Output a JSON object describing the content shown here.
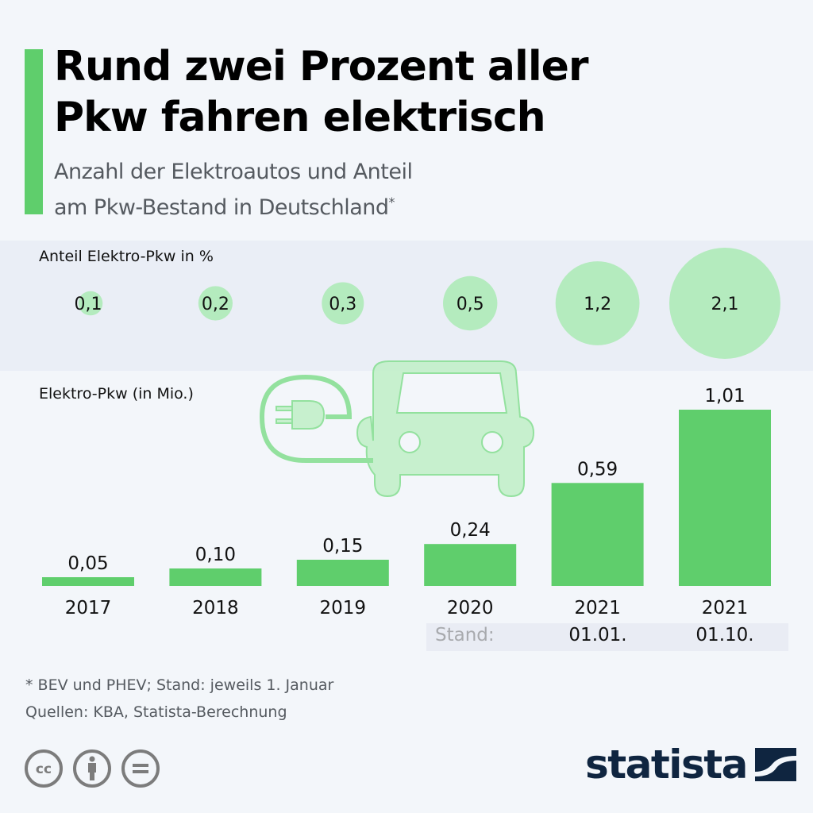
{
  "header": {
    "title_line1": "Rund zwei Prozent aller",
    "title_line2": "Pkw fahren elektrisch",
    "subtitle_line1": "Anzahl der Elektroautos und Anteil",
    "subtitle_line2": "am Pkw-Bestand in Deutschland",
    "subtitle_mark": "*"
  },
  "colors": {
    "accent": "#5fce6c",
    "bubble": "#b4ebbe",
    "bar": "#5fce6c",
    "text": "#111111",
    "logo": "#0f2540"
  },
  "chart_data": [
    {
      "type": "bubble",
      "title": "Anteil Elektro-Pkw in %",
      "categories": [
        "2017",
        "2018",
        "2019",
        "2020",
        "2021 (01.01.)",
        "2021 (01.10.)"
      ],
      "values": [
        0.1,
        0.2,
        0.3,
        0.5,
        1.2,
        2.1
      ],
      "labels": [
        "0,1",
        "0,2",
        "0,3",
        "0,5",
        "1,2",
        "2,1"
      ],
      "unit": "%"
    },
    {
      "type": "bar",
      "title": "Elektro-Pkw (in Mio.)",
      "categories": [
        "2017",
        "2018",
        "2019",
        "2020",
        "2021",
        "2021"
      ],
      "values": [
        0.05,
        0.1,
        0.15,
        0.24,
        0.59,
        1.01
      ],
      "labels": [
        "0,05",
        "0,10",
        "0,15",
        "0,24",
        "0,59",
        "1,01"
      ],
      "xlabel": "",
      "ylabel": "Mio.",
      "ylim": [
        0,
        1.01
      ],
      "grid": false
    }
  ],
  "stand": {
    "label": "Stand:",
    "dates": [
      "01.01.",
      "01.10."
    ]
  },
  "footnote": {
    "line1": "* BEV und PHEV; Stand: jeweils 1. Januar",
    "line2": "Quellen: KBA, Statista-Berechnung"
  },
  "license_icons": [
    "cc-icon",
    "by-attribution-icon",
    "no-derivatives-icon"
  ],
  "logo": {
    "text": "statista"
  }
}
